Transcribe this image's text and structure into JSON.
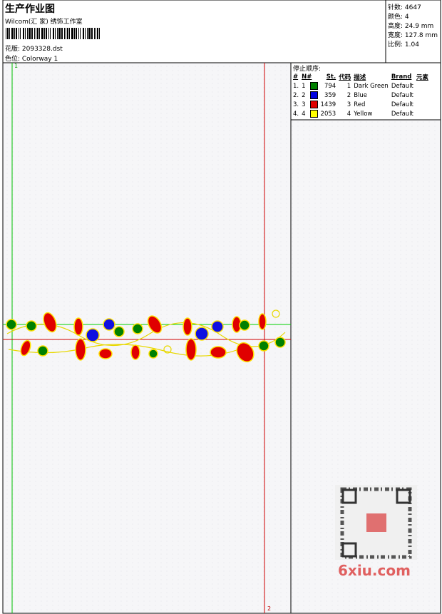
{
  "header": {
    "title": "生产作业图",
    "studio": "Wilcom(汇 家) 绣饰工作室",
    "design": "花版: 2093328.dst",
    "colorway": "色位: Colorway 1"
  },
  "info": [
    "针数: 4647",
    "颜色: 4",
    "高度: 24.9 mm",
    "宽度: 127.8 mm",
    "比例: 1.04"
  ],
  "stop_sequence": {
    "title": "停止顺序:",
    "columns": [
      "#",
      "N#",
      "St.",
      "代码",
      "描述",
      "Brand",
      "元素"
    ],
    "rows": [
      {
        "index": "1.",
        "needle": "1",
        "color": "#008000",
        "stitches": 794,
        "code": 1,
        "description": "Dark Green",
        "brand": "Default"
      },
      {
        "index": "2.",
        "needle": "2",
        "color": "#0000e0",
        "stitches": 359,
        "code": 2,
        "description": "Blue",
        "brand": "Default"
      },
      {
        "index": "3.",
        "needle": "3",
        "color": "#e00000",
        "stitches": 1439,
        "code": 3,
        "description": "Red",
        "brand": "Default"
      },
      {
        "index": "4.",
        "needle": "4",
        "color": "#ffff00",
        "stitches": 2053,
        "code": 4,
        "description": "Yellow",
        "brand": "Default"
      }
    ]
  },
  "markers": {
    "start": "1",
    "end": "2"
  },
  "watermark": "6xiu.com"
}
